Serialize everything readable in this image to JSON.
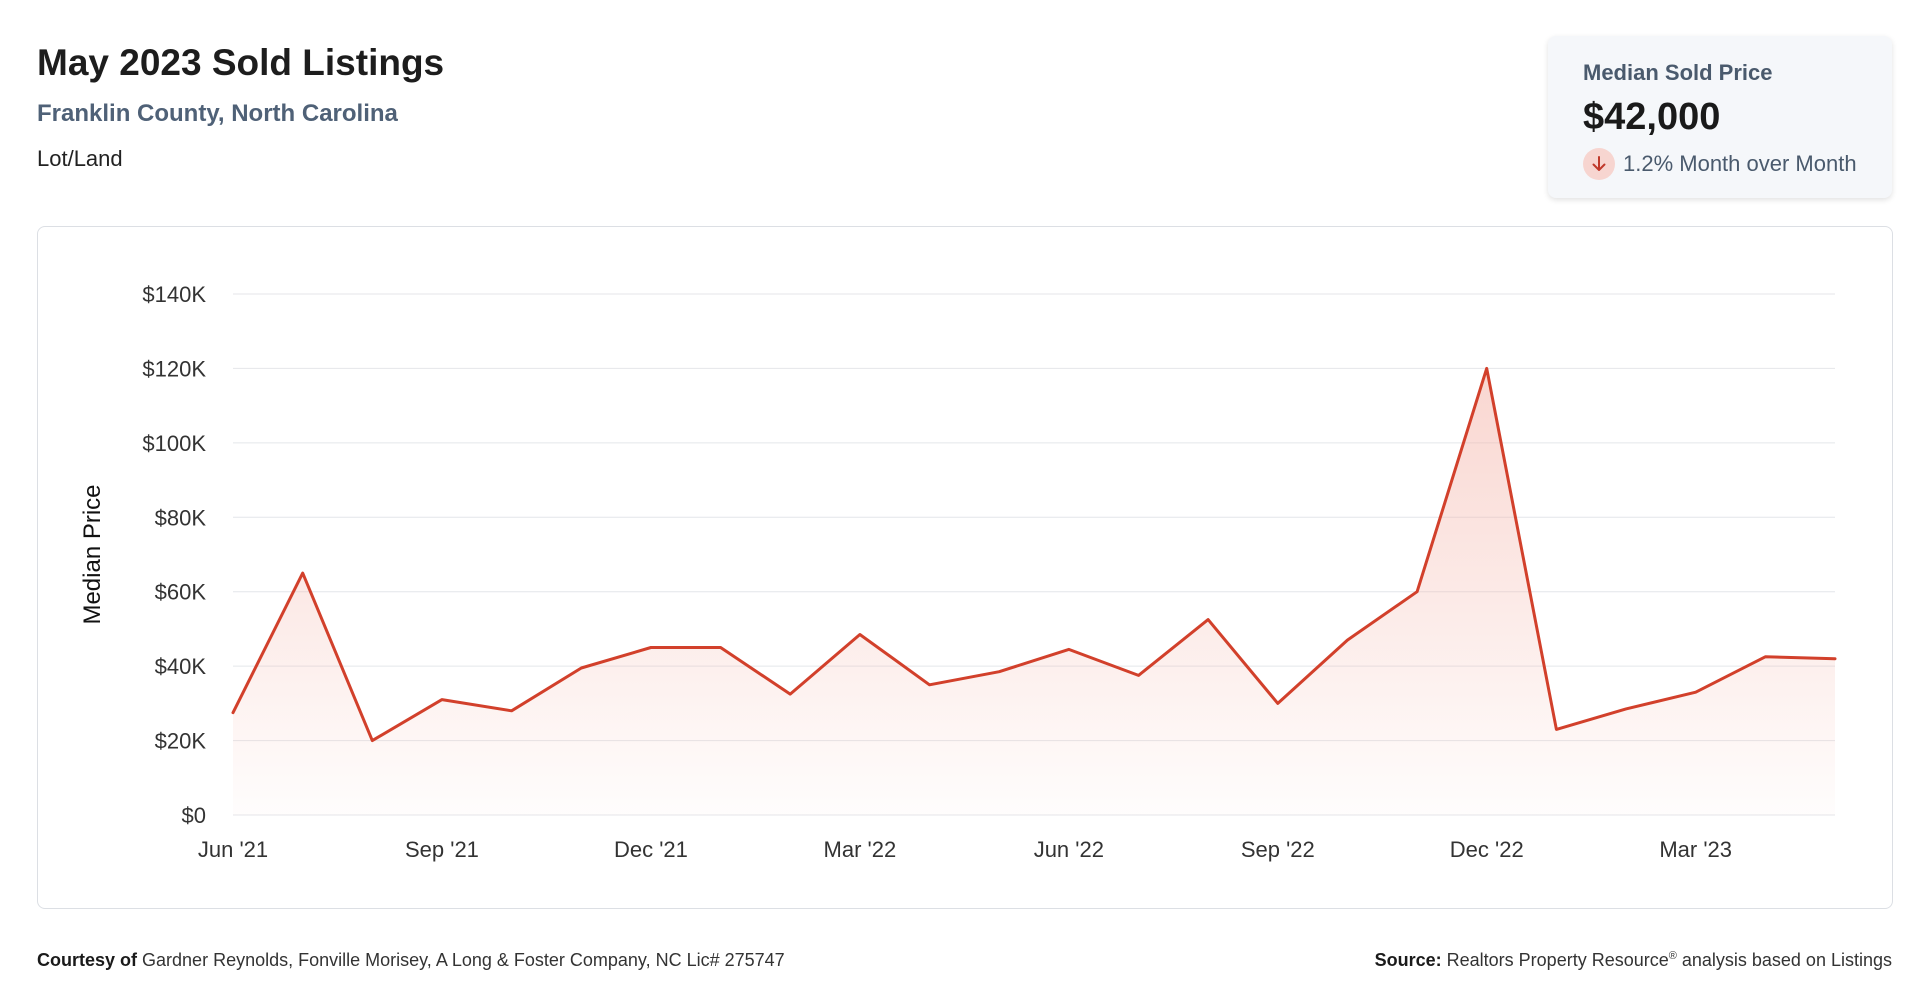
{
  "header": {
    "title": "May 2023 Sold Listings",
    "subtitle": "Franklin County, North Carolina",
    "property_type": "Lot/Land"
  },
  "stat_card": {
    "label": "Median Sold Price",
    "value": "$42,000",
    "change_text": "1.2% Month over Month",
    "change_icon": "arrow-down-icon"
  },
  "footer": {
    "courtesy_label": "Courtesy of",
    "courtesy_text": "Gardner Reynolds, Fonville Morisey, A Long & Foster Company, NC Lic# 275747",
    "source_label": "Source:",
    "source_text": "Realtors Property Resource",
    "source_mark": "®",
    "source_suffix": "analysis based on Listings"
  },
  "colors": {
    "line": "#d2402b",
    "area_top": "#f4b5aa",
    "grid": "#e4e6ea",
    "axis_text": "#333333"
  },
  "chart_data": {
    "type": "area",
    "ylabel": "Median Price",
    "ylim": [
      0,
      140000
    ],
    "y_ticks": [
      0,
      20000,
      40000,
      60000,
      80000,
      100000,
      120000,
      140000
    ],
    "y_tick_labels": [
      "$0",
      "$20K",
      "$40K",
      "$60K",
      "$80K",
      "$100K",
      "$120K",
      "$140K"
    ],
    "x_tick_labels": [
      "Jun '21",
      "Sep '21",
      "Dec '21",
      "Mar '22",
      "Jun '22",
      "Sep '22",
      "Dec '22",
      "Mar '23"
    ],
    "x": [
      "2021-06",
      "2021-07",
      "2021-08",
      "2021-09",
      "2021-10",
      "2021-11",
      "2021-12",
      "2022-01",
      "2022-02",
      "2022-03",
      "2022-04",
      "2022-05",
      "2022-06",
      "2022-07",
      "2022-08",
      "2022-09",
      "2022-10",
      "2022-11",
      "2022-12",
      "2023-01",
      "2023-02",
      "2023-03",
      "2023-04",
      "2023-05"
    ],
    "series": [
      {
        "values": [
          27500,
          65000,
          20000,
          31000,
          28000,
          39500,
          45000,
          45000,
          32500,
          48500,
          35000,
          38500,
          44500,
          37500,
          52500,
          30000,
          47000,
          60000,
          120000,
          23000,
          28500,
          33000,
          42500,
          42000
        ]
      }
    ],
    "grid": true,
    "legend": "none"
  }
}
